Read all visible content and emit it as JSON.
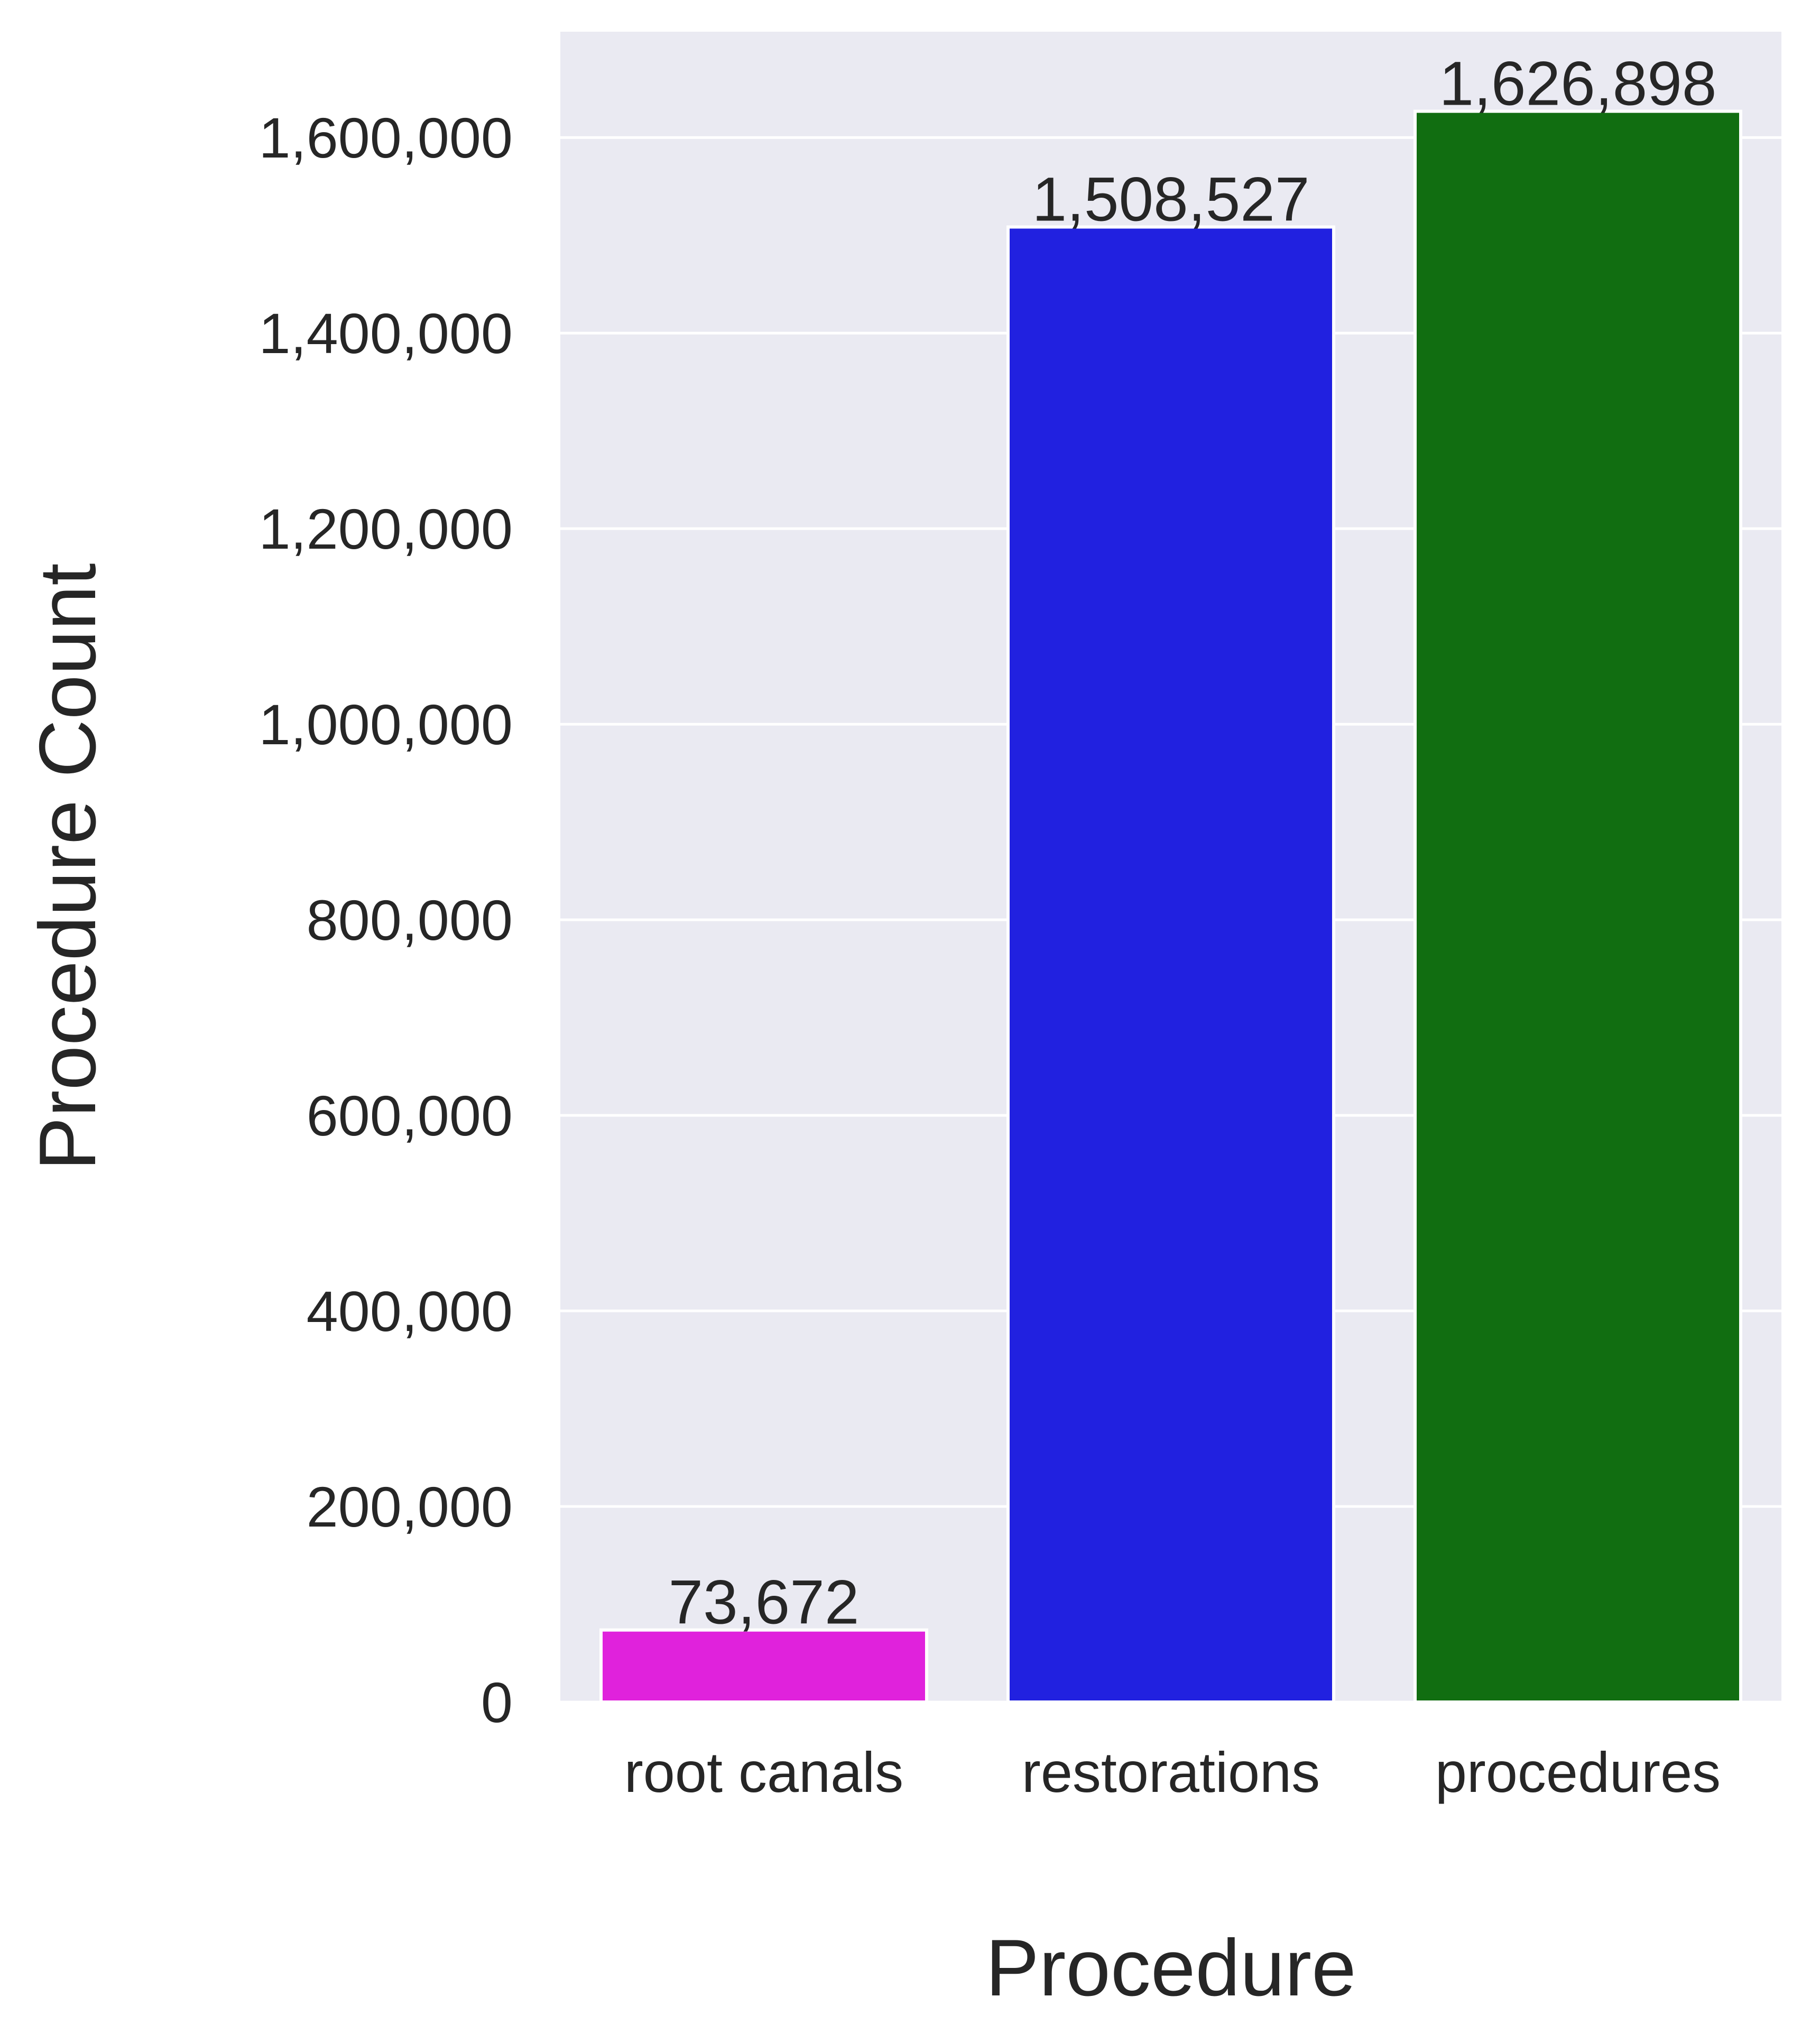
{
  "chart_data": {
    "type": "bar",
    "categories": [
      "root canals",
      "restorations",
      "procedures"
    ],
    "values": [
      73672,
      1508527,
      1626898
    ],
    "value_labels": [
      "73,672",
      "1,508,527",
      "1,626,898"
    ],
    "colors": [
      "#e022dc",
      "#2121e0",
      "#116e11"
    ],
    "xlabel": "Procedure",
    "ylabel": "Procedure Count",
    "ylim": [
      0,
      1708243
    ],
    "yticks": [
      0,
      200000,
      400000,
      600000,
      800000,
      1000000,
      1200000,
      1400000,
      1600000
    ],
    "ytick_labels": [
      "0",
      "200,000",
      "400,000",
      "600,000",
      "800,000",
      "1,000,000",
      "1,200,000",
      "1,400,000",
      "1,600,000"
    ],
    "grid": true,
    "legend": "none",
    "background": "#eaeaf2"
  }
}
